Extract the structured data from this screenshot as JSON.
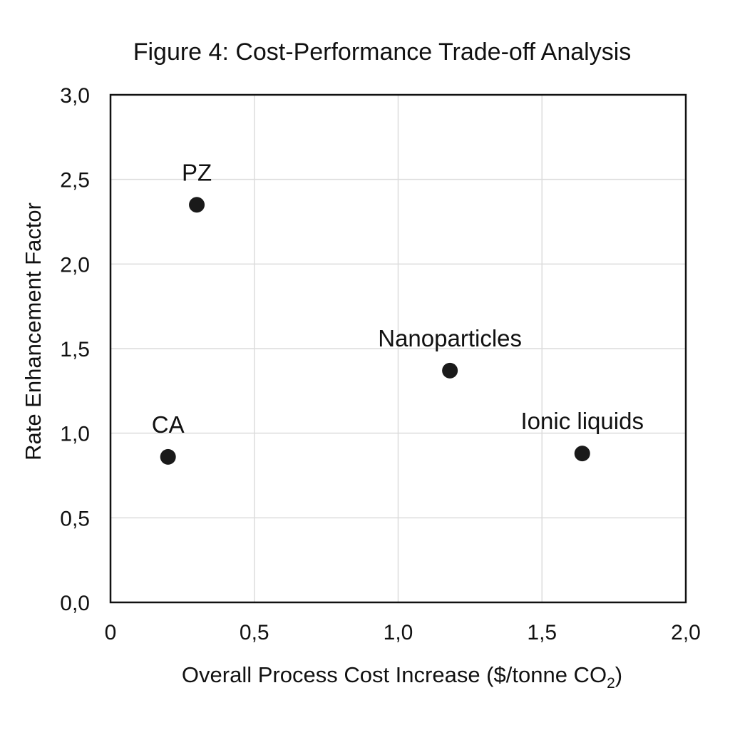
{
  "chart_data": {
    "type": "scatter",
    "title": "Figure 4: Cost-Performance Trade-off Analysis",
    "xlabel_main": "Overall Process Cost Increase ($/tonne CO",
    "xlabel_sub": "2",
    "xlabel_close": ")",
    "ylabel": "Rate Enhancement Factor",
    "xlim": [
      0,
      2.0
    ],
    "ylim": [
      0,
      3.0
    ],
    "xticks": [
      0,
      0.5,
      1.0,
      1.5,
      2.0
    ],
    "xtick_labels": [
      "0",
      "0,5",
      "1,0",
      "1,5",
      "2,0"
    ],
    "yticks": [
      0,
      0.5,
      1.0,
      1.5,
      2.0,
      2.5,
      3.0
    ],
    "ytick_labels": [
      "0,0",
      "0,5",
      "1,0",
      "1,5",
      "2,0",
      "2,5",
      "3,0"
    ],
    "grid": true,
    "legend": "none",
    "points": [
      {
        "label": "PZ",
        "x": 0.3,
        "y": 2.35
      },
      {
        "label": "CA",
        "x": 0.2,
        "y": 0.86
      },
      {
        "label": "Nanoparticles",
        "x": 1.18,
        "y": 1.37
      },
      {
        "label": "Ionic liquids",
        "x": 1.64,
        "y": 0.88
      }
    ]
  }
}
